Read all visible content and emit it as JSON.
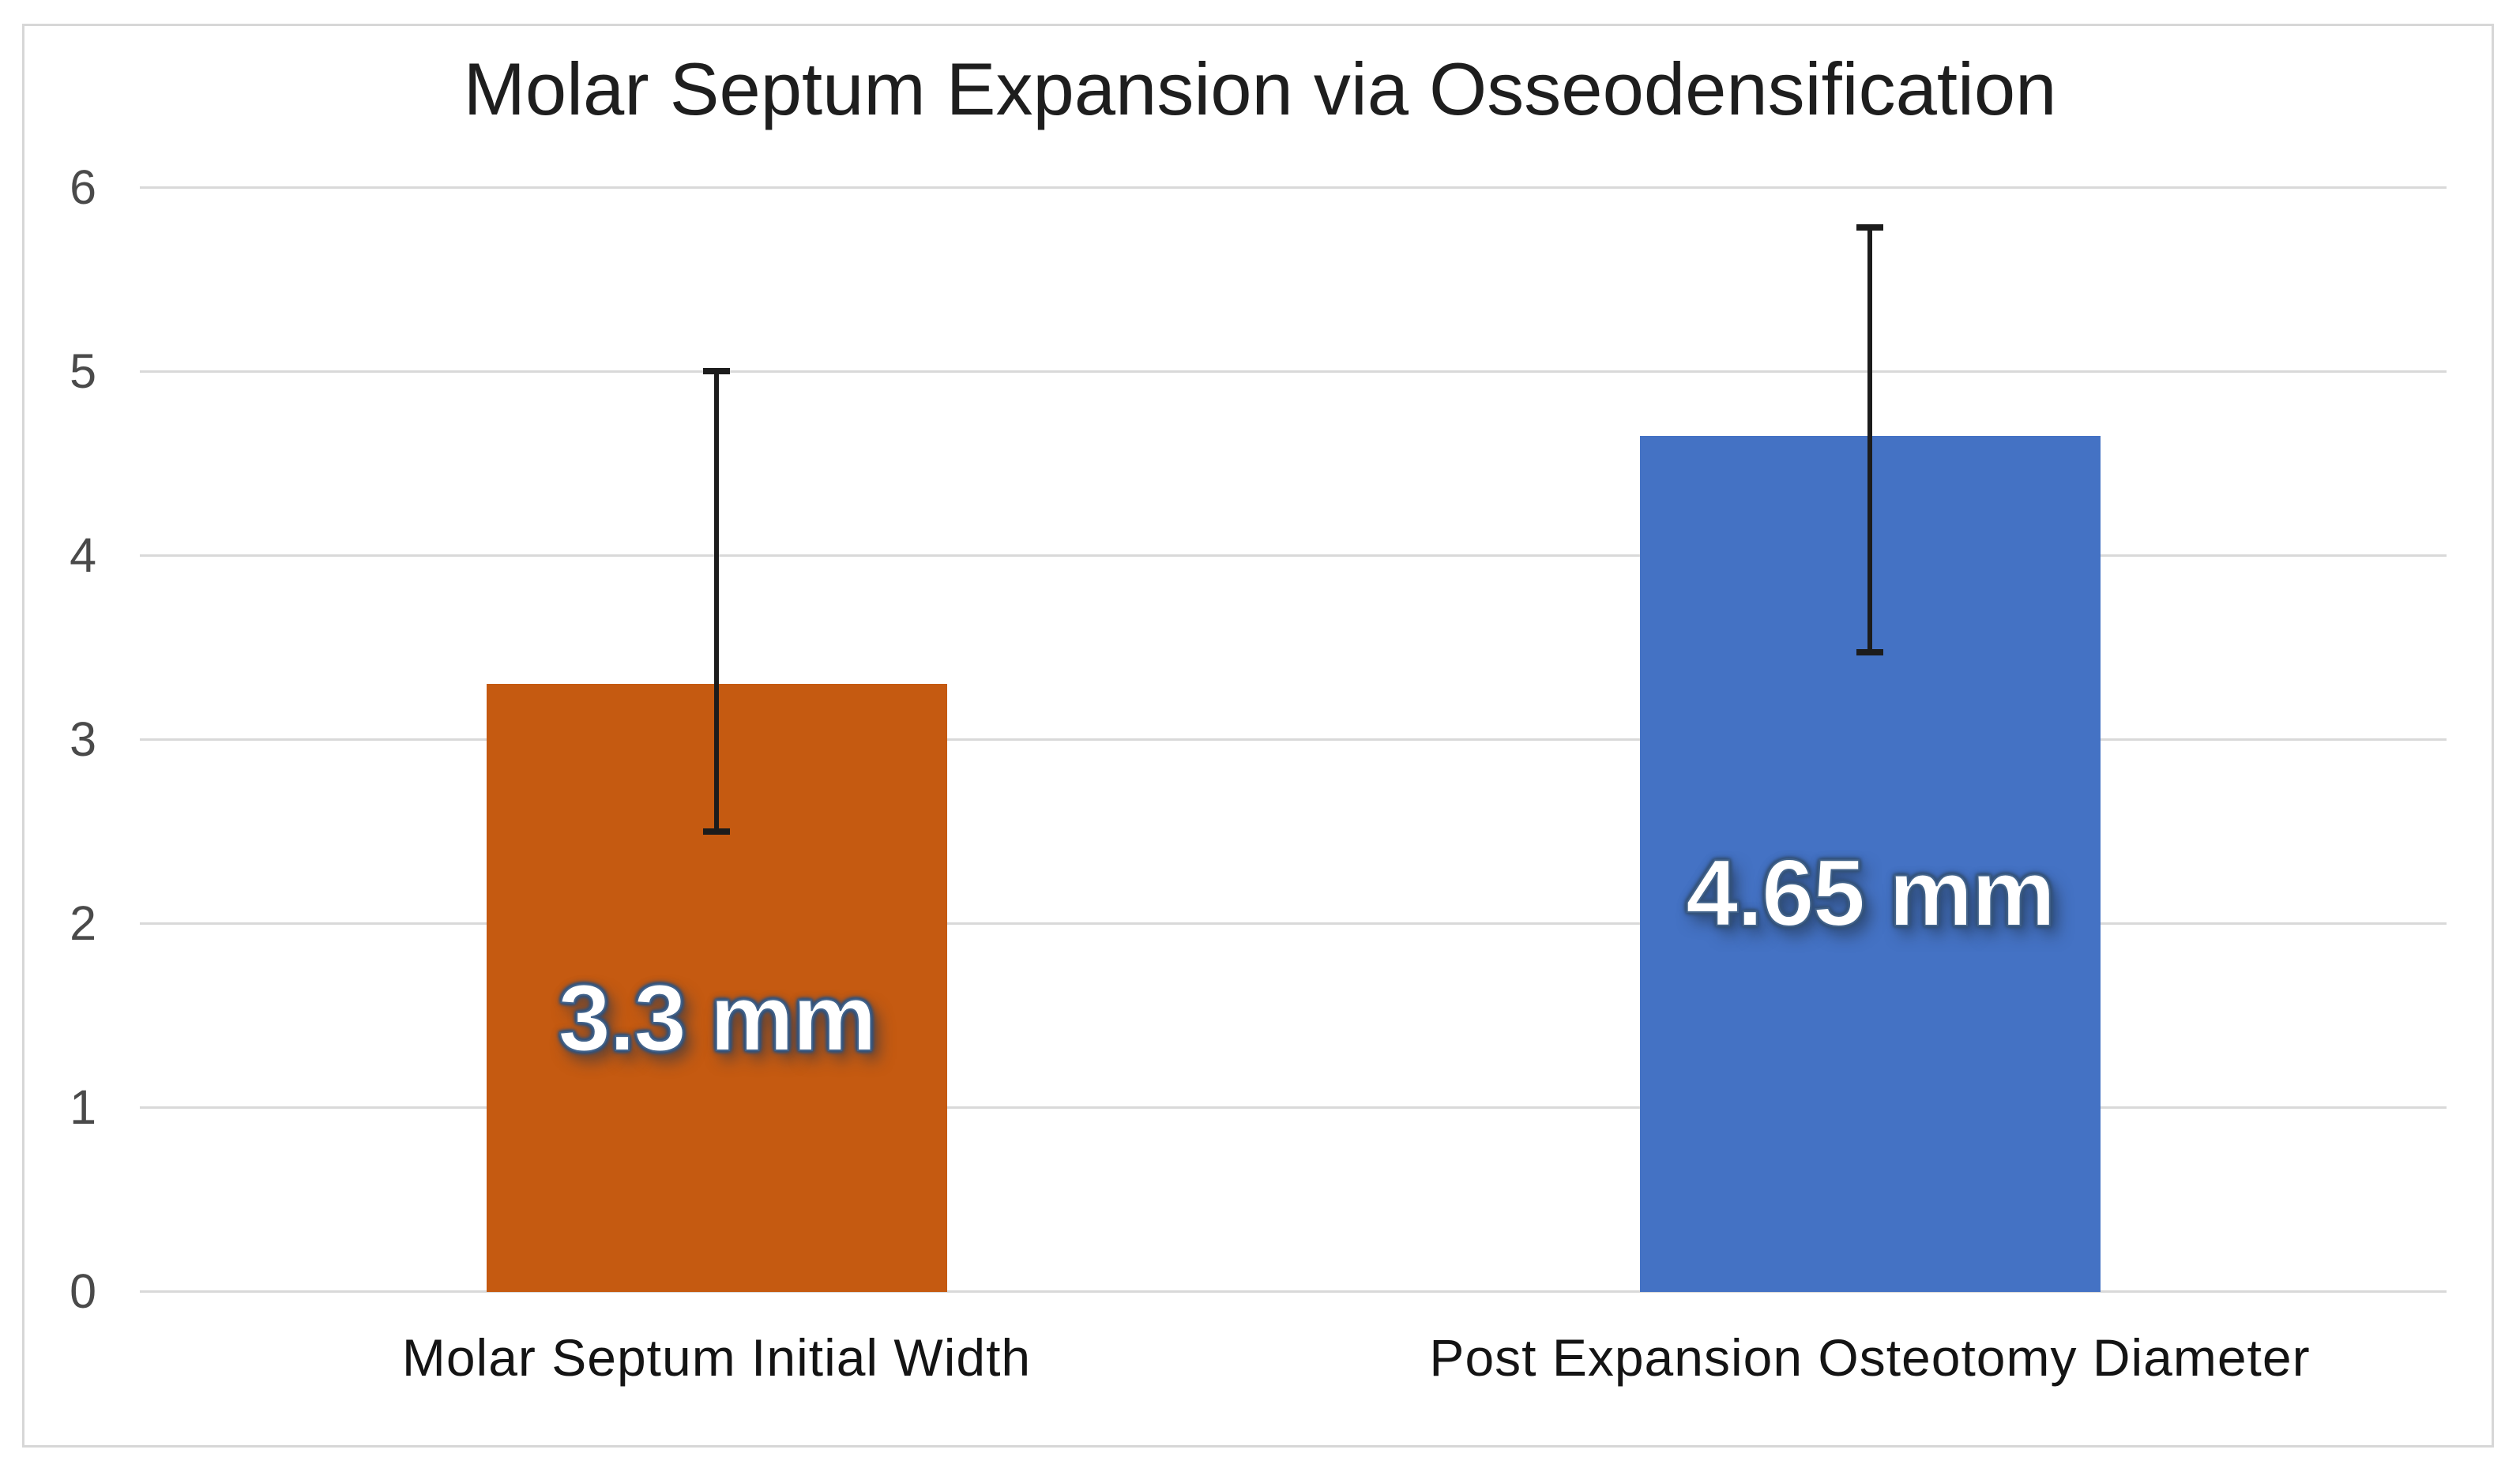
{
  "chart_data": {
    "type": "bar",
    "title": "Molar Septum Expansion via Osseodensification",
    "categories": [
      "Molar Septum Initial Width",
      "Post Expansion Osteotomy Diameter"
    ],
    "values": [
      3.3,
      4.65
    ],
    "data_labels": [
      "3.3 mm",
      "4.65 mm"
    ],
    "bar_colors": [
      "#C55A11",
      "#4472C4"
    ],
    "error_bars": [
      {
        "low": 2.5,
        "high": 5.0
      },
      {
        "low": 3.47,
        "high": 5.78
      }
    ],
    "ylim": [
      0,
      6
    ],
    "yticks": [
      0,
      1,
      2,
      3,
      4,
      5,
      6
    ],
    "xlabel": "",
    "ylabel": "",
    "grid": true,
    "legend": false,
    "colors": {
      "gridline": "#D9D9D9",
      "chart_border": "#D7D7D7",
      "error_bar": "#1C1C1C",
      "title_text": "#1E1E1E",
      "tick_text": "#4A4A4A",
      "category_text": "#141414",
      "label_text": "#FFFFFF",
      "label_outline": "#3A5A82"
    }
  }
}
